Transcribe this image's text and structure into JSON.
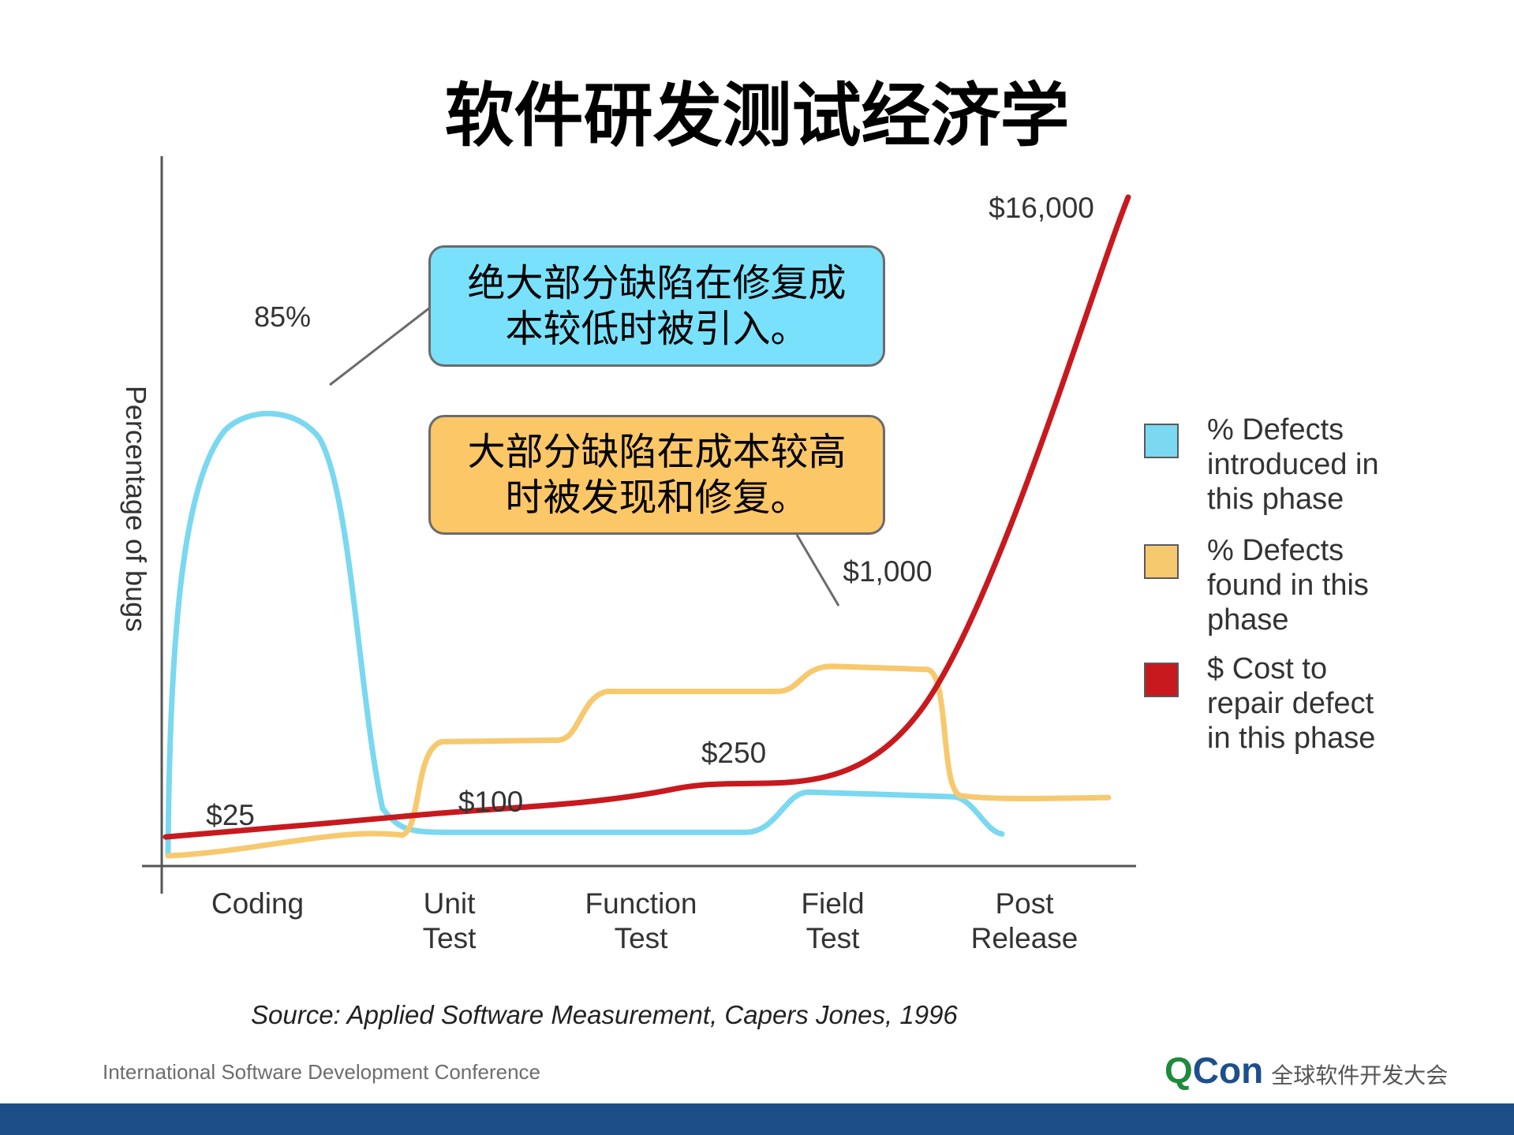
{
  "slide": {
    "title": "软件研发测试经济学",
    "source": "Source: Applied Software Measurement, Capers Jones, 1996",
    "footer_left": "International Software Development Conference",
    "logo_q": "Q",
    "logo_con": "Con",
    "logo_tag": "全球软件开发大会"
  },
  "callouts": {
    "introduced": "绝大部分缺陷在修复成本较低时被引入。",
    "found": "大部分缺陷在成本较高时被发现和修复。"
  },
  "legend": [
    {
      "label": "% Defects introduced in this phase",
      "color": "#7ad8f0",
      "icon": "cyan-square"
    },
    {
      "label": "% Defects found in this phase",
      "color": "#f7c96e",
      "icon": "orange-square"
    },
    {
      "label": "$ Cost to repair defect in this phase",
      "color": "#c8191e",
      "icon": "red-square"
    }
  ],
  "chart_data": {
    "type": "line",
    "title": "",
    "xlabel": "",
    "ylabel": "Percentage of bugs",
    "categories": [
      "Coding",
      "Unit Test",
      "Function Test",
      "Field Test",
      "Post Release"
    ],
    "category_labels": [
      [
        "Coding"
      ],
      [
        "Unit",
        "Test"
      ],
      [
        "Function",
        "Test"
      ],
      [
        "Field",
        "Test"
      ],
      [
        "Post",
        "Release"
      ]
    ],
    "peak_label": "85%",
    "series": [
      {
        "name": "% Defects introduced in this phase",
        "color": "#7ad8f0",
        "values": [
          85,
          2,
          2,
          10,
          2
        ]
      },
      {
        "name": "% Defects found in this phase",
        "color": "#f7c96e",
        "values": [
          3,
          20,
          30,
          35,
          10
        ]
      },
      {
        "name": "$ Cost to repair defect in this phase",
        "color": "#c8191e",
        "values": [
          25,
          100,
          250,
          1000,
          16000
        ]
      }
    ],
    "cost_labels": [
      "$25",
      "$100",
      "$250",
      "$1,000",
      "$16,000"
    ],
    "grid": false,
    "legend_position": "right"
  }
}
